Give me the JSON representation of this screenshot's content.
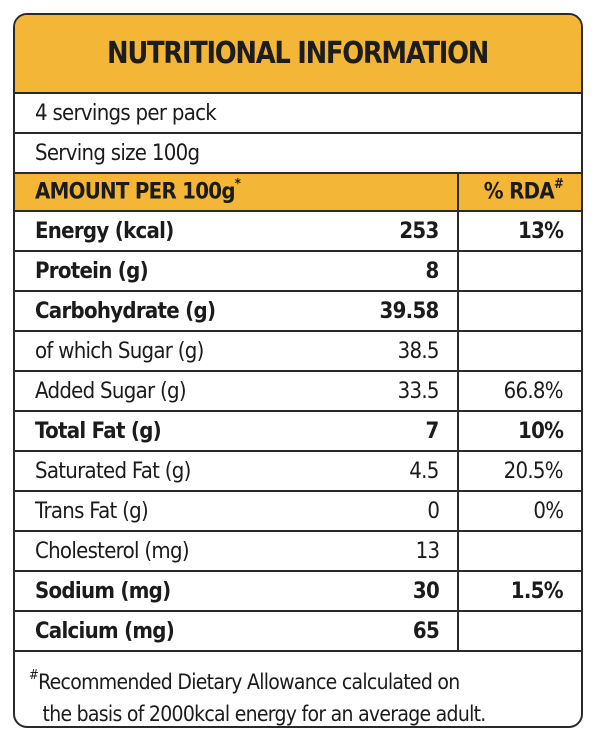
{
  "title": "NUTRITIONAL INFORMATION",
  "servings_per_pack": "4 servings per pack",
  "serving_size": "Serving size 100g",
  "header": {
    "amount_label": "AMOUNT PER 100g",
    "amount_mark": "*",
    "rda_label": "% RDA",
    "rda_mark": "#"
  },
  "rows": [
    {
      "name": "Energy (kcal)",
      "value": "253",
      "rda": "13%",
      "bold": true
    },
    {
      "name": "Protein (g)",
      "value": "8",
      "rda": "",
      "bold": true
    },
    {
      "name": "Carbohydrate (g)",
      "value": "39.58",
      "rda": "",
      "bold": true
    },
    {
      "name": "of which Sugar (g)",
      "value": "38.5",
      "rda": "",
      "bold": false
    },
    {
      "name": "Added Sugar (g)",
      "value": "33.5",
      "rda": "66.8%",
      "bold": false
    },
    {
      "name": "Total Fat (g)",
      "value": "7",
      "rda": "10%",
      "bold": true
    },
    {
      "name": "Saturated Fat (g)",
      "value": "4.5",
      "rda": "20.5%",
      "bold": false
    },
    {
      "name": "Trans Fat (g)",
      "value": "0",
      "rda": "0%",
      "bold": false
    },
    {
      "name": "Cholesterol (mg)",
      "value": "13",
      "rda": "",
      "bold": false
    },
    {
      "name": "Sodium (mg)",
      "value": "30",
      "rda": "1.5%",
      "bold": true
    },
    {
      "name": "Calcium (mg)",
      "value": "65",
      "rda": "",
      "bold": true
    }
  ],
  "footnote": {
    "mark": "#",
    "line1": "Recommended Dietary Allowance calculated on",
    "line2": "the basis of 2000kcal energy for an average adult."
  },
  "colors": {
    "accent": "#f3b636",
    "border": "#2a2a2a"
  }
}
